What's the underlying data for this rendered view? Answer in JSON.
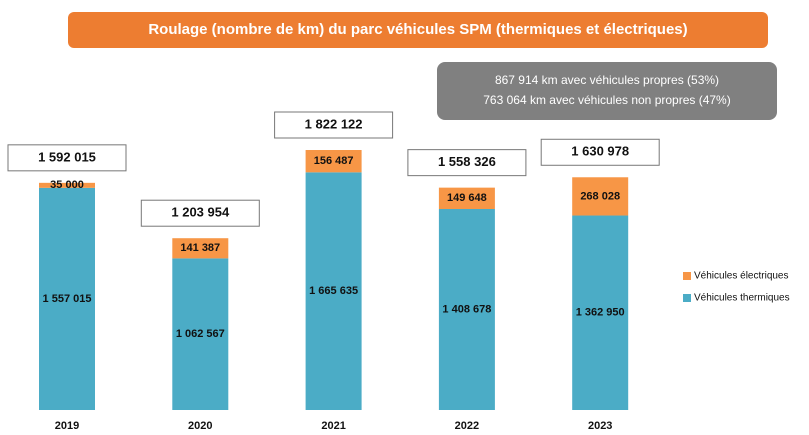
{
  "chart_data": {
    "type": "stacked_bar",
    "title": "Roulage (nombre de km) du parc véhicules SPM (thermiques et électriques)",
    "annotations": [
      "867 914 km avec véhicules propres (53%)",
      "763 064 km avec véhicules non propres (47%)"
    ],
    "categories": [
      "2019",
      "2020",
      "2021",
      "2022",
      "2023"
    ],
    "series": [
      {
        "name": "Véhicules thermiques",
        "color": "#4bacc6",
        "values": [
          1557015,
          1062567,
          1665635,
          1408678,
          1362950
        ],
        "value_labels": [
          "1 557 015",
          "1 062 567",
          "1 665 635",
          "1 408 678",
          "1 362 950"
        ]
      },
      {
        "name": "Véhicules électriques",
        "color": "#f79646",
        "values": [
          35000,
          141387,
          156487,
          149648,
          268028
        ],
        "value_labels": [
          "35 000",
          "141 387",
          "156 487",
          "149 648",
          "268 028"
        ]
      }
    ],
    "totals": [
      1592015,
      1203954,
      1822122,
      1558326,
      1630978
    ],
    "total_labels": [
      "1 592 015",
      "1 203 954",
      "1 822 122",
      "1 558 326",
      "1 630 978"
    ]
  }
}
